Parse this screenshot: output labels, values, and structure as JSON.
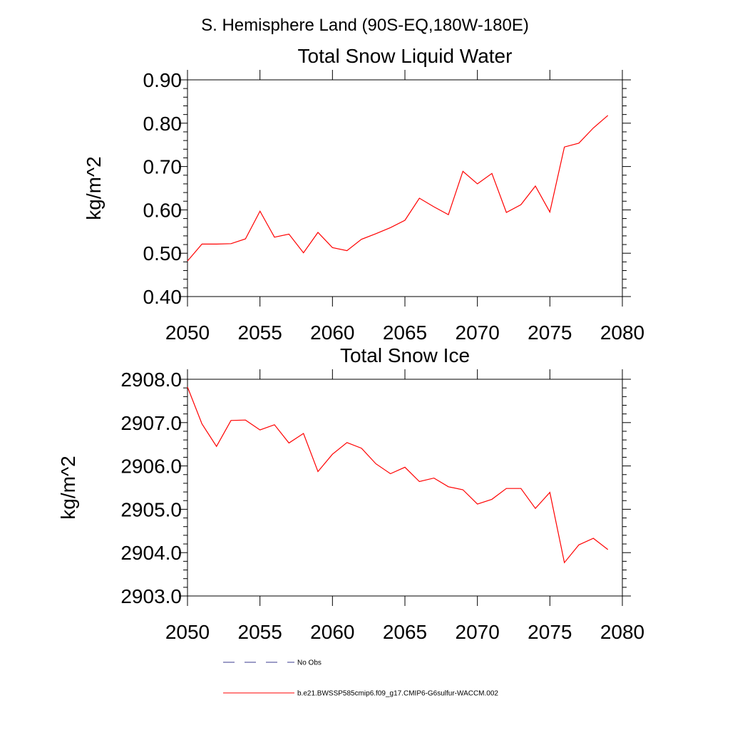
{
  "page_title": "S. Hemisphere Land (90S-EQ,180W-180E)",
  "legend": {
    "items": [
      {
        "label": "No Obs",
        "color": "#3b3b8f",
        "style": "dashed"
      },
      {
        "label": "b.e21.BWSSP585cmip6.f09_g17.CMIP6-G6sulfur-WACCM.002",
        "color": "#ff0000",
        "style": "solid"
      }
    ]
  },
  "chart_data": [
    {
      "type": "line",
      "title": "Total Snow Liquid Water",
      "xlabel": "",
      "ylabel": "kg/m^2",
      "xlim": [
        2050,
        2080
      ],
      "ylim": [
        0.4,
        0.9
      ],
      "xticks": [
        2050,
        2055,
        2060,
        2065,
        2070,
        2075,
        2080
      ],
      "yticks": [
        0.4,
        0.5,
        0.6,
        0.7,
        0.8,
        0.9
      ],
      "ytick_labels": [
        "0.40",
        "0.50",
        "0.60",
        "0.70",
        "0.80",
        "0.90"
      ],
      "xtick_labels": [
        "2050",
        "2055",
        "2060",
        "2065",
        "2070",
        "2075",
        "2080"
      ],
      "grid": false,
      "series": [
        {
          "name": "b.e21.BWSSP585cmip6.f09_g17.CMIP6-G6sulfur-WACCM.002",
          "color": "#ff0000",
          "x": [
            2050,
            2051,
            2052,
            2053,
            2054,
            2055,
            2056,
            2057,
            2058,
            2059,
            2060,
            2061,
            2062,
            2063,
            2064,
            2065,
            2066,
            2067,
            2068,
            2069,
            2070,
            2071,
            2072,
            2073,
            2074,
            2075,
            2076,
            2077,
            2078,
            2079
          ],
          "y": [
            0.482,
            0.521,
            0.521,
            0.522,
            0.533,
            0.597,
            0.537,
            0.544,
            0.501,
            0.548,
            0.513,
            0.506,
            0.532,
            0.545,
            0.559,
            0.576,
            0.627,
            0.607,
            0.589,
            0.689,
            0.66,
            0.684,
            0.594,
            0.612,
            0.655,
            0.595,
            0.745,
            0.754,
            0.789,
            0.818
          ]
        }
      ]
    },
    {
      "type": "line",
      "title": "Total Snow Ice",
      "xlabel": "",
      "ylabel": "kg/m^2",
      "xlim": [
        2050,
        2080
      ],
      "ylim": [
        2903.0,
        2908.0
      ],
      "xticks": [
        2050,
        2055,
        2060,
        2065,
        2070,
        2075,
        2080
      ],
      "yticks": [
        2903.0,
        2904.0,
        2905.0,
        2906.0,
        2907.0,
        2908.0
      ],
      "ytick_labels": [
        "2903.0",
        "2904.0",
        "2905.0",
        "2906.0",
        "2907.0",
        "2908.0"
      ],
      "xtick_labels": [
        "2050",
        "2055",
        "2060",
        "2065",
        "2070",
        "2075",
        "2080"
      ],
      "grid": false,
      "series": [
        {
          "name": "b.e21.BWSSP585cmip6.f09_g17.CMIP6-G6sulfur-WACCM.002",
          "color": "#ff0000",
          "x": [
            2050,
            2051,
            2052,
            2053,
            2054,
            2055,
            2056,
            2057,
            2058,
            2059,
            2060,
            2061,
            2062,
            2063,
            2064,
            2065,
            2066,
            2067,
            2068,
            2069,
            2070,
            2071,
            2072,
            2073,
            2074,
            2075,
            2076,
            2077,
            2078,
            2079
          ],
          "y": [
            2907.82,
            2906.97,
            2906.45,
            2907.05,
            2907.06,
            2906.83,
            2906.95,
            2906.53,
            2906.75,
            2905.87,
            2906.27,
            2906.54,
            2906.41,
            2906.05,
            2905.82,
            2905.97,
            2905.64,
            2905.72,
            2905.52,
            2905.45,
            2905.12,
            2905.23,
            2905.48,
            2905.48,
            2905.02,
            2905.39,
            2903.77,
            2904.18,
            2904.33,
            2904.07
          ]
        }
      ]
    }
  ]
}
